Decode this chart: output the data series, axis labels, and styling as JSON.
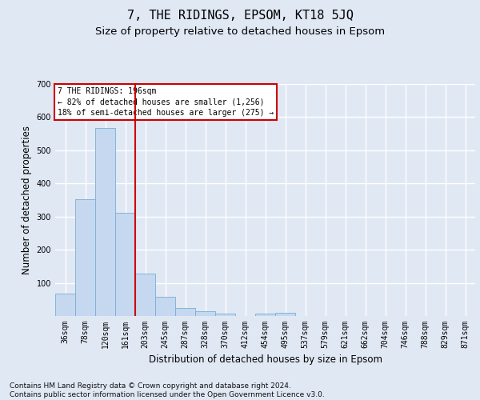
{
  "title": "7, THE RIDINGS, EPSOM, KT18 5JQ",
  "subtitle": "Size of property relative to detached houses in Epsom",
  "xlabel": "Distribution of detached houses by size in Epsom",
  "ylabel": "Number of detached properties",
  "bar_labels": [
    "36sqm",
    "78sqm",
    "120sqm",
    "161sqm",
    "203sqm",
    "245sqm",
    "287sqm",
    "328sqm",
    "370sqm",
    "412sqm",
    "454sqm",
    "495sqm",
    "537sqm",
    "579sqm",
    "621sqm",
    "662sqm",
    "704sqm",
    "746sqm",
    "788sqm",
    "829sqm",
    "871sqm"
  ],
  "bar_values": [
    68,
    352,
    567,
    311,
    128,
    57,
    25,
    15,
    8,
    0,
    8,
    10,
    0,
    0,
    0,
    0,
    0,
    0,
    0,
    0,
    0
  ],
  "bar_fill_color": "#c5d8f0",
  "bar_edge_color": "#7aadd4",
  "vline_position": 3.5,
  "vline_color": "#cc0000",
  "annotation_text": "7 THE RIDINGS: 196sqm\n← 82% of detached houses are smaller (1,256)\n18% of semi-detached houses are larger (275) →",
  "annotation_box_facecolor": "#ffffff",
  "annotation_box_edgecolor": "#cc0000",
  "ylim": [
    0,
    700
  ],
  "yticks": [
    100,
    200,
    300,
    400,
    500,
    600,
    700
  ],
  "bg_color": "#e0e8f4",
  "grid_color": "#ffffff",
  "title_fontsize": 11,
  "subtitle_fontsize": 9.5,
  "ylabel_fontsize": 8.5,
  "xlabel_fontsize": 8.5,
  "tick_fontsize": 7,
  "annot_fontsize": 7,
  "footer_text": "Contains HM Land Registry data © Crown copyright and database right 2024.\nContains public sector information licensed under the Open Government Licence v3.0.",
  "footer_fontsize": 6.5
}
